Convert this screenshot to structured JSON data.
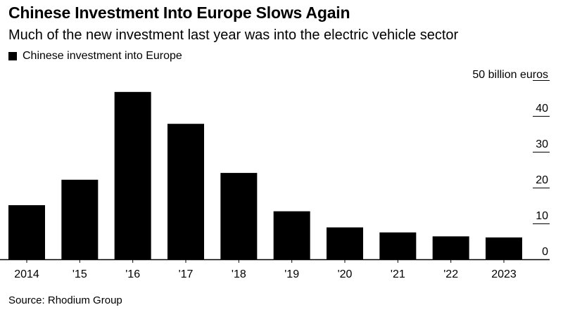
{
  "chart_data": {
    "type": "bar",
    "title": "Chinese Investment Into Europe Slows Again",
    "subtitle": "Much of the new investment last year was into the electric vehicle sector",
    "legend": [
      "Chinese investment into Europe"
    ],
    "legend_position": "top-left",
    "categories": [
      "2014",
      "'15",
      "'16",
      "'17",
      "'18",
      "'19",
      "'20",
      "'21",
      "'22",
      "2023"
    ],
    "series": [
      {
        "name": "Chinese investment into Europe",
        "values": [
          15.1,
          22.2,
          46.7,
          37.8,
          24.1,
          13.4,
          8.9,
          7.5,
          6.4,
          6.1
        ]
      }
    ],
    "y_axis_unit_label": "50 billion euros",
    "y_ticks": [
      "0",
      "10",
      "20",
      "30",
      "40"
    ],
    "ylim": [
      0,
      50
    ],
    "y_axis_side": "right",
    "grid": false,
    "bar_color": "#000000",
    "source": "Source: Rhodium Group"
  }
}
